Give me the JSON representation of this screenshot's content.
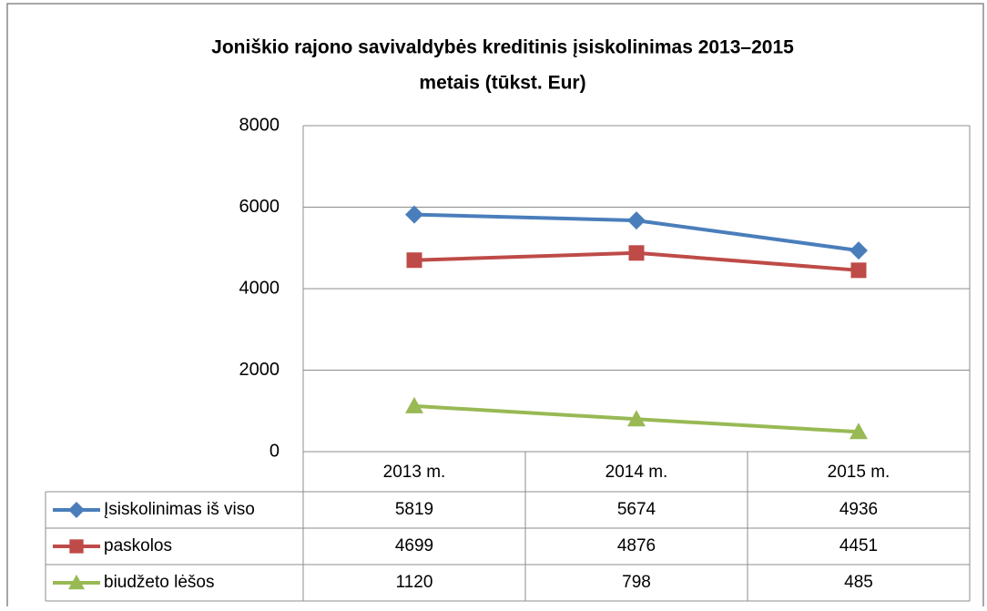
{
  "chart_data": {
    "type": "line",
    "title": [
      "Joniškio rajono savivaldybės kreditinis įsiskolinimas 2013–2015",
      "metais (tūkst. Eur)"
    ],
    "categories": [
      "2013 m.",
      "2014 m.",
      "2015 m."
    ],
    "series": [
      {
        "name": "Įsiskolinimas iš viso",
        "color": "#4a7ebb",
        "marker": "diamond",
        "values": [
          5819,
          5674,
          4936
        ]
      },
      {
        "name": "paskolos",
        "color": "#be4b48",
        "marker": "square",
        "values": [
          4699,
          4876,
          4451
        ]
      },
      {
        "name": "biudžeto lėšos",
        "color": "#98b954",
        "marker": "triangle",
        "values": [
          1120,
          798,
          485
        ]
      }
    ],
    "ylim": [
      0,
      8000
    ],
    "yticks": [
      0,
      2000,
      4000,
      6000,
      8000
    ],
    "grid": true,
    "data_table": true
  }
}
